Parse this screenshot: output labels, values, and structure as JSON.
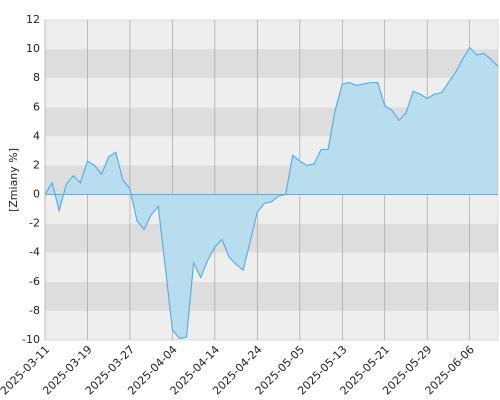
{
  "chart_data": {
    "type": "area",
    "y_label": "[Zmiany %]",
    "categories": [
      "2025-03-11",
      null,
      null,
      null,
      null,
      null,
      "2025-03-19",
      null,
      null,
      null,
      null,
      null,
      "2025-03-27",
      null,
      null,
      null,
      null,
      null,
      "2025-04-04",
      null,
      null,
      null,
      null,
      null,
      "2025-04-14",
      null,
      null,
      null,
      null,
      null,
      "2025-04-24",
      null,
      null,
      null,
      null,
      null,
      "2025-05-05",
      null,
      null,
      null,
      null,
      null,
      "2025-05-13",
      null,
      null,
      null,
      null,
      null,
      "2025-05-21",
      null,
      null,
      null,
      null,
      null,
      "2025-05-29",
      null,
      null,
      null,
      null,
      null,
      "2025-06-06",
      null,
      null,
      null,
      null
    ],
    "values": [
      0,
      0.8,
      -1.1,
      0.7,
      1.3,
      0.8,
      2.3,
      2.0,
      1.4,
      2.6,
      2.9,
      1.0,
      0.4,
      -1.8,
      -2.4,
      -1.4,
      -0.8,
      -5.0,
      -9.3,
      -9.9,
      -9.8,
      -4.7,
      -5.7,
      -4.5,
      -3.6,
      -3.1,
      -4.3,
      -4.8,
      -5.2,
      -3.2,
      -1.2,
      -0.6,
      -0.5,
      -0.1,
      0.0,
      2.7,
      2.3,
      2.0,
      2.1,
      3.1,
      3.1,
      5.8,
      7.6,
      7.7,
      7.5,
      7.6,
      7.7,
      7.7,
      6.1,
      5.8,
      5.1,
      5.6,
      7.1,
      6.9,
      6.6,
      6.9,
      7.0,
      7.7,
      8.4,
      9.3,
      10.1,
      9.6,
      9.7,
      9.3,
      8.8
    ],
    "color": "#5aaee6",
    "fill": "#b8ddef",
    "ylim": [
      -10,
      12
    ],
    "yticks": [
      -10,
      -8,
      -6,
      -4,
      -2,
      0,
      2,
      4,
      6,
      8,
      10,
      12
    ],
    "bands": [
      "#eeeeee",
      "#dddddd"
    ],
    "grid": true
  }
}
